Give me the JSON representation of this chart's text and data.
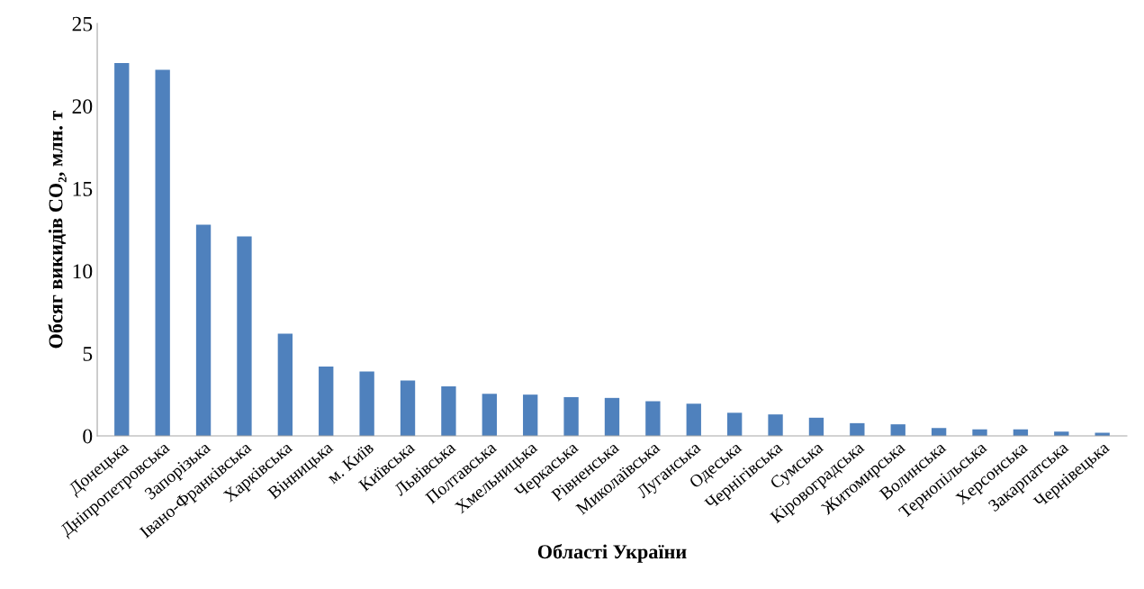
{
  "chart_data": {
    "type": "bar",
    "xlabel": "Області України",
    "ylabel": "Обсяг викидів CO₂, млн. т",
    "categories": [
      "Донецька",
      "Дніпропетровська",
      "Запорізька",
      "Івано-Франківська",
      "Харківська",
      "Вінницька",
      "м. Київ",
      "Київська",
      "Львівська",
      "Полтавська",
      "Хмельницька",
      "Черкаська",
      "Рівненська",
      "Миколаївська",
      "Луганська",
      "Одеська",
      "Чернігівська",
      "Сумська",
      "Кіровоградська",
      "Житомирська",
      "Волинська",
      "Тернопільська",
      "Херсонська",
      "Закарпатська",
      "Чернівецька"
    ],
    "values": [
      22.6,
      22.2,
      12.8,
      12.1,
      6.2,
      4.2,
      3.9,
      3.35,
      3.0,
      2.55,
      2.5,
      2.35,
      2.3,
      2.1,
      1.95,
      1.4,
      1.3,
      1.1,
      0.77,
      0.7,
      0.47,
      0.4,
      0.4,
      0.26,
      0.19
    ],
    "color": "#4f81bd",
    "ylim": [
      0,
      25
    ],
    "yticks": [
      0,
      5,
      10,
      15,
      20,
      25
    ],
    "grid": false,
    "legend": false
  }
}
